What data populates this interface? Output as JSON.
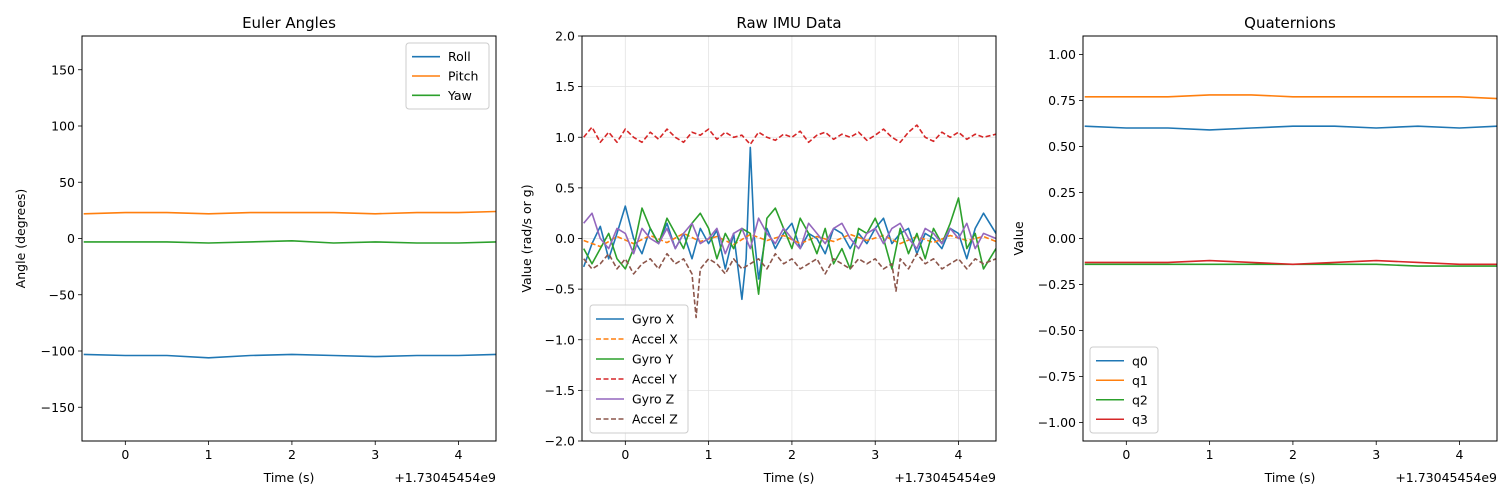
{
  "chart_data": [
    {
      "type": "line",
      "title": "Euler Angles",
      "xlabel": "Time (s)",
      "ylabel": "Angle (degrees)",
      "x_offset_label": "+1.73045454e9",
      "xlim": [
        -0.52,
        4.45
      ],
      "ylim": [
        -180,
        180
      ],
      "xticks": [
        0,
        1,
        2,
        3,
        4
      ],
      "xtick_labels": [
        "0",
        "1",
        "2",
        "3",
        "4"
      ],
      "yticks": [
        -150,
        -100,
        -50,
        0,
        50,
        100,
        150
      ],
      "ytick_labels": [
        "−150",
        "−100",
        "−50",
        "0",
        "50",
        "100",
        "150"
      ],
      "grid": false,
      "legend_position": "upper-right",
      "series": [
        {
          "name": "Roll",
          "color": "#1f77b4",
          "dash": "solid",
          "x": [
            -0.5,
            0,
            0.5,
            1,
            1.5,
            2,
            2.5,
            3,
            3.5,
            4,
            4.45
          ],
          "values": [
            -103,
            -104,
            -104,
            -106,
            -104,
            -103,
            -104,
            -105,
            -104,
            -104,
            -103
          ]
        },
        {
          "name": "Pitch",
          "color": "#ff7f0e",
          "dash": "solid",
          "x": [
            -0.5,
            0,
            0.5,
            1,
            1.5,
            2,
            2.5,
            3,
            3.5,
            4,
            4.45
          ],
          "values": [
            22,
            23,
            23,
            22,
            23,
            23,
            23,
            22,
            23,
            23,
            24
          ]
        },
        {
          "name": "Yaw",
          "color": "#2ca02c",
          "dash": "solid",
          "x": [
            -0.5,
            0,
            0.5,
            1,
            1.5,
            2,
            2.5,
            3,
            3.5,
            4,
            4.45
          ],
          "values": [
            -3,
            -3,
            -3,
            -4,
            -3,
            -2,
            -4,
            -3,
            -4,
            -4,
            -3
          ]
        }
      ]
    },
    {
      "type": "line",
      "title": "Raw IMU Data",
      "xlabel": "Time (s)",
      "ylabel": "Value (rad/s or g)",
      "x_offset_label": "+1.73045454e9",
      "xlim": [
        -0.52,
        4.45
      ],
      "ylim": [
        -2.0,
        2.0
      ],
      "xticks": [
        0,
        1,
        2,
        3,
        4
      ],
      "xtick_labels": [
        "0",
        "1",
        "2",
        "3",
        "4"
      ],
      "yticks": [
        -2.0,
        -1.5,
        -1.0,
        -0.5,
        0.0,
        0.5,
        1.0,
        1.5,
        2.0
      ],
      "ytick_labels": [
        "−2.0",
        "−1.5",
        "−1.0",
        "−0.5",
        "0.0",
        "0.5",
        "1.0",
        "1.5",
        "2.0"
      ],
      "grid": true,
      "legend_position": "lower-left",
      "series": [
        {
          "name": "Gyro X",
          "color": "#1f77b4",
          "dash": "solid",
          "x": [
            -0.5,
            -0.4,
            -0.3,
            -0.2,
            -0.1,
            0.0,
            0.1,
            0.2,
            0.3,
            0.4,
            0.5,
            0.6,
            0.7,
            0.8,
            0.9,
            1.0,
            1.1,
            1.2,
            1.3,
            1.4,
            1.45,
            1.5,
            1.55,
            1.6,
            1.7,
            1.8,
            1.9,
            2.0,
            2.1,
            2.2,
            2.3,
            2.4,
            2.5,
            2.6,
            2.7,
            2.8,
            2.9,
            3.0,
            3.1,
            3.2,
            3.3,
            3.4,
            3.5,
            3.6,
            3.7,
            3.8,
            3.9,
            4.0,
            4.1,
            4.2,
            4.3,
            4.45
          ],
          "values": [
            -0.28,
            -0.05,
            0.12,
            -0.2,
            0.05,
            0.32,
            0.0,
            -0.15,
            0.1,
            -0.05,
            0.15,
            -0.1,
            0.05,
            -0.2,
            0.1,
            -0.05,
            0.08,
            -0.3,
            0.05,
            -0.6,
            -0.2,
            0.9,
            0.0,
            -0.4,
            0.1,
            -0.1,
            0.05,
            0.15,
            -0.1,
            0.05,
            0.0,
            -0.15,
            0.1,
            0.05,
            -0.1,
            0.05,
            -0.05,
            0.1,
            0.2,
            -0.05,
            0.05,
            0.1,
            -0.15,
            0.05,
            0.0,
            -0.1,
            0.1,
            0.05,
            -0.2,
            0.1,
            0.25,
            0.05
          ]
        },
        {
          "name": "Accel X",
          "color": "#ff7f0e",
          "dash": "dashed",
          "x": [
            -0.5,
            -0.3,
            -0.1,
            0.1,
            0.3,
            0.5,
            0.7,
            0.9,
            1.1,
            1.3,
            1.5,
            1.7,
            1.9,
            2.1,
            2.3,
            2.5,
            2.7,
            2.9,
            3.1,
            3.3,
            3.5,
            3.7,
            3.9,
            4.1,
            4.3,
            4.45
          ],
          "values": [
            -0.02,
            -0.08,
            0.02,
            -0.05,
            0.03,
            -0.04,
            0.05,
            -0.03,
            0.02,
            -0.06,
            0.04,
            -0.02,
            0.03,
            -0.05,
            0.02,
            -0.03,
            0.04,
            -0.02,
            0.03,
            -0.05,
            0.02,
            -0.04,
            0.03,
            -0.02,
            0.02,
            -0.03
          ]
        },
        {
          "name": "Gyro Y",
          "color": "#2ca02c",
          "dash": "solid",
          "x": [
            -0.5,
            -0.4,
            -0.3,
            -0.2,
            -0.1,
            0.0,
            0.1,
            0.2,
            0.3,
            0.4,
            0.5,
            0.6,
            0.7,
            0.8,
            0.9,
            1.0,
            1.1,
            1.2,
            1.3,
            1.4,
            1.5,
            1.6,
            1.7,
            1.8,
            1.9,
            2.0,
            2.1,
            2.2,
            2.3,
            2.4,
            2.5,
            2.6,
            2.7,
            2.8,
            2.9,
            3.0,
            3.1,
            3.2,
            3.3,
            3.4,
            3.5,
            3.6,
            3.7,
            3.8,
            3.9,
            4.0,
            4.1,
            4.2,
            4.3,
            4.45
          ],
          "values": [
            -0.1,
            -0.25,
            -0.1,
            0.05,
            -0.2,
            -0.3,
            -0.1,
            0.3,
            0.1,
            -0.05,
            0.2,
            0.05,
            -0.1,
            0.15,
            0.25,
            0.1,
            -0.2,
            0.05,
            -0.1,
            0.1,
            0.05,
            -0.55,
            0.2,
            0.3,
            0.1,
            -0.1,
            0.2,
            0.05,
            -0.15,
            0.1,
            -0.25,
            -0.1,
            -0.3,
            0.1,
            0.05,
            0.2,
            0.0,
            -0.3,
            0.1,
            -0.15,
            0.05,
            -0.2,
            0.1,
            -0.05,
            0.15,
            0.4,
            -0.1,
            0.05,
            -0.3,
            -0.1
          ]
        },
        {
          "name": "Accel Y",
          "color": "#d62728",
          "dash": "dashed",
          "x": [
            -0.5,
            -0.4,
            -0.3,
            -0.2,
            -0.1,
            0.0,
            0.1,
            0.2,
            0.3,
            0.4,
            0.5,
            0.6,
            0.7,
            0.8,
            0.9,
            1.0,
            1.1,
            1.2,
            1.3,
            1.4,
            1.5,
            1.6,
            1.7,
            1.8,
            1.9,
            2.0,
            2.1,
            2.2,
            2.3,
            2.4,
            2.5,
            2.6,
            2.7,
            2.8,
            2.9,
            3.0,
            3.1,
            3.2,
            3.3,
            3.4,
            3.5,
            3.6,
            3.7,
            3.8,
            3.9,
            4.0,
            4.1,
            4.2,
            4.3,
            4.45
          ],
          "values": [
            1.0,
            1.1,
            0.95,
            1.05,
            0.95,
            1.08,
            1.0,
            0.95,
            1.05,
            0.98,
            1.08,
            1.0,
            0.95,
            1.05,
            1.02,
            1.08,
            0.98,
            1.05,
            1.0,
            1.02,
            0.93,
            1.05,
            1.0,
            0.97,
            1.03,
            1.0,
            1.06,
            0.95,
            1.02,
            1.05,
            0.98,
            1.03,
            1.0,
            1.05,
            0.97,
            1.02,
            1.08,
            1.0,
            0.95,
            1.05,
            1.12,
            1.0,
            0.96,
            1.05,
            1.0,
            1.05,
            0.98,
            1.03,
            1.0,
            1.03
          ]
        },
        {
          "name": "Gyro Z",
          "color": "#9467bd",
          "dash": "solid",
          "x": [
            -0.5,
            -0.4,
            -0.3,
            -0.2,
            -0.1,
            0.0,
            0.1,
            0.2,
            0.3,
            0.4,
            0.5,
            0.6,
            0.7,
            0.8,
            0.9,
            1.0,
            1.1,
            1.2,
            1.3,
            1.4,
            1.5,
            1.6,
            1.7,
            1.8,
            1.9,
            2.0,
            2.1,
            2.2,
            2.3,
            2.4,
            2.5,
            2.6,
            2.7,
            2.8,
            2.9,
            3.0,
            3.1,
            3.2,
            3.3,
            3.4,
            3.5,
            3.6,
            3.7,
            3.8,
            3.9,
            4.0,
            4.1,
            4.2,
            4.3,
            4.45
          ],
          "values": [
            0.15,
            0.25,
            0.0,
            -0.1,
            0.1,
            0.05,
            -0.15,
            0.1,
            0.0,
            -0.05,
            0.1,
            -0.1,
            0.05,
            0.15,
            -0.05,
            0.0,
            0.1,
            -0.15,
            0.05,
            0.1,
            -0.1,
            0.2,
            0.05,
            -0.05,
            0.1,
            0.0,
            -0.1,
            0.15,
            0.05,
            -0.05,
            0.1,
            0.15,
            0.0,
            -0.1,
            0.05,
            0.1,
            -0.05,
            0.1,
            0.15,
            0.0,
            -0.1,
            0.1,
            0.05,
            -0.05,
            0.1,
            0.0,
            0.15,
            -0.1,
            0.05,
            0.0
          ]
        },
        {
          "name": "Accel Z",
          "color": "#8c564b",
          "dash": "dashed",
          "x": [
            -0.5,
            -0.4,
            -0.3,
            -0.2,
            -0.1,
            0.0,
            0.1,
            0.2,
            0.3,
            0.4,
            0.5,
            0.6,
            0.7,
            0.8,
            0.85,
            0.9,
            1.0,
            1.1,
            1.2,
            1.3,
            1.4,
            1.5,
            1.6,
            1.7,
            1.8,
            1.9,
            2.0,
            2.1,
            2.2,
            2.3,
            2.4,
            2.5,
            2.6,
            2.7,
            2.8,
            2.9,
            3.0,
            3.1,
            3.2,
            3.25,
            3.3,
            3.4,
            3.5,
            3.6,
            3.7,
            3.8,
            3.9,
            4.0,
            4.1,
            4.2,
            4.3,
            4.45
          ],
          "values": [
            -0.2,
            -0.3,
            -0.25,
            -0.15,
            -0.3,
            -0.2,
            -0.35,
            -0.25,
            -0.2,
            -0.3,
            -0.15,
            -0.25,
            -0.2,
            -0.35,
            -0.78,
            -0.3,
            -0.2,
            -0.25,
            -0.35,
            -0.2,
            -0.3,
            -0.25,
            -0.2,
            -0.3,
            -0.15,
            -0.25,
            -0.2,
            -0.3,
            -0.25,
            -0.2,
            -0.35,
            -0.2,
            -0.25,
            -0.3,
            -0.2,
            -0.25,
            -0.2,
            -0.3,
            -0.25,
            -0.52,
            -0.2,
            -0.3,
            -0.15,
            -0.25,
            -0.2,
            -0.3,
            -0.25,
            -0.2,
            -0.3,
            -0.2,
            -0.25,
            -0.2
          ]
        }
      ]
    },
    {
      "type": "line",
      "title": "Quaternions",
      "xlabel": "Time (s)",
      "ylabel": "Value",
      "x_offset_label": "+1.73045454e9",
      "xlim": [
        -0.52,
        4.45
      ],
      "ylim": [
        -1.1,
        1.1
      ],
      "xticks": [
        0,
        1,
        2,
        3,
        4
      ],
      "xtick_labels": [
        "0",
        "1",
        "2",
        "3",
        "4"
      ],
      "yticks": [
        -1.0,
        -0.75,
        -0.5,
        -0.25,
        0.0,
        0.25,
        0.5,
        0.75,
        1.0
      ],
      "ytick_labels": [
        "−1.00",
        "−0.75",
        "−0.50",
        "−0.25",
        "0.00",
        "0.25",
        "0.50",
        "0.75",
        "1.00"
      ],
      "grid": false,
      "legend_position": "lower-left",
      "series": [
        {
          "name": "q0",
          "color": "#1f77b4",
          "dash": "solid",
          "x": [
            -0.5,
            0,
            0.5,
            1,
            1.5,
            2,
            2.5,
            3,
            3.5,
            4,
            4.45
          ],
          "values": [
            0.61,
            0.6,
            0.6,
            0.59,
            0.6,
            0.61,
            0.61,
            0.6,
            0.61,
            0.6,
            0.61
          ]
        },
        {
          "name": "q1",
          "color": "#ff7f0e",
          "dash": "solid",
          "x": [
            -0.5,
            0,
            0.5,
            1,
            1.5,
            2,
            2.5,
            3,
            3.5,
            4,
            4.45
          ],
          "values": [
            0.77,
            0.77,
            0.77,
            0.78,
            0.78,
            0.77,
            0.77,
            0.77,
            0.77,
            0.77,
            0.76
          ]
        },
        {
          "name": "q2",
          "color": "#2ca02c",
          "dash": "solid",
          "x": [
            -0.5,
            0,
            0.5,
            1,
            1.5,
            2,
            2.5,
            3,
            3.5,
            4,
            4.45
          ],
          "values": [
            -0.14,
            -0.14,
            -0.14,
            -0.14,
            -0.14,
            -0.14,
            -0.14,
            -0.14,
            -0.15,
            -0.15,
            -0.15
          ]
        },
        {
          "name": "q3",
          "color": "#d62728",
          "dash": "solid",
          "x": [
            -0.5,
            0,
            0.5,
            1,
            1.5,
            2,
            2.5,
            3,
            3.5,
            4,
            4.45
          ],
          "values": [
            -0.13,
            -0.13,
            -0.13,
            -0.12,
            -0.13,
            -0.14,
            -0.13,
            -0.12,
            -0.13,
            -0.14,
            -0.14
          ]
        }
      ]
    }
  ]
}
